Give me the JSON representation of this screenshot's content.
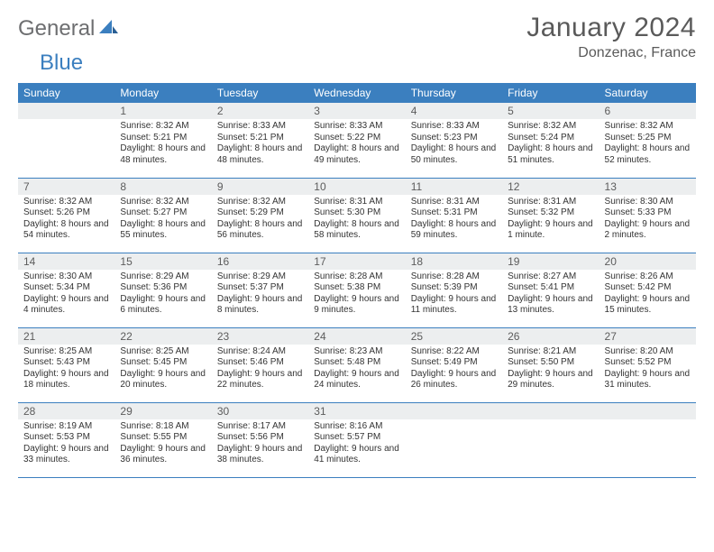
{
  "logo": {
    "word1": "General",
    "word2": "Blue"
  },
  "header": {
    "month_title": "January 2024",
    "location": "Donzenac, France"
  },
  "colors": {
    "header_bg": "#3b7fbf",
    "header_text": "#ffffff",
    "daynum_bg": "#eceeef",
    "daynum_text": "#5c5c5c",
    "body_text": "#333333",
    "rule": "#3b7fbf",
    "page_bg": "#ffffff",
    "logo_gray": "#6d6e70",
    "logo_blue": "#3b7fbf"
  },
  "typography": {
    "month_title_fontsize": 30,
    "location_fontsize": 16,
    "weekday_fontsize": 12,
    "daynum_fontsize": 12,
    "body_fontsize": 10
  },
  "calendar": {
    "type": "table",
    "weekdays": [
      "Sunday",
      "Monday",
      "Tuesday",
      "Wednesday",
      "Thursday",
      "Friday",
      "Saturday"
    ],
    "weeks": [
      [
        null,
        {
          "n": "1",
          "sunrise": "8:32 AM",
          "sunset": "5:21 PM",
          "daylight": "8 hours and 48 minutes."
        },
        {
          "n": "2",
          "sunrise": "8:33 AM",
          "sunset": "5:21 PM",
          "daylight": "8 hours and 48 minutes."
        },
        {
          "n": "3",
          "sunrise": "8:33 AM",
          "sunset": "5:22 PM",
          "daylight": "8 hours and 49 minutes."
        },
        {
          "n": "4",
          "sunrise": "8:33 AM",
          "sunset": "5:23 PM",
          "daylight": "8 hours and 50 minutes."
        },
        {
          "n": "5",
          "sunrise": "8:32 AM",
          "sunset": "5:24 PM",
          "daylight": "8 hours and 51 minutes."
        },
        {
          "n": "6",
          "sunrise": "8:32 AM",
          "sunset": "5:25 PM",
          "daylight": "8 hours and 52 minutes."
        }
      ],
      [
        {
          "n": "7",
          "sunrise": "8:32 AM",
          "sunset": "5:26 PM",
          "daylight": "8 hours and 54 minutes."
        },
        {
          "n": "8",
          "sunrise": "8:32 AM",
          "sunset": "5:27 PM",
          "daylight": "8 hours and 55 minutes."
        },
        {
          "n": "9",
          "sunrise": "8:32 AM",
          "sunset": "5:29 PM",
          "daylight": "8 hours and 56 minutes."
        },
        {
          "n": "10",
          "sunrise": "8:31 AM",
          "sunset": "5:30 PM",
          "daylight": "8 hours and 58 minutes."
        },
        {
          "n": "11",
          "sunrise": "8:31 AM",
          "sunset": "5:31 PM",
          "daylight": "8 hours and 59 minutes."
        },
        {
          "n": "12",
          "sunrise": "8:31 AM",
          "sunset": "5:32 PM",
          "daylight": "9 hours and 1 minute."
        },
        {
          "n": "13",
          "sunrise": "8:30 AM",
          "sunset": "5:33 PM",
          "daylight": "9 hours and 2 minutes."
        }
      ],
      [
        {
          "n": "14",
          "sunrise": "8:30 AM",
          "sunset": "5:34 PM",
          "daylight": "9 hours and 4 minutes."
        },
        {
          "n": "15",
          "sunrise": "8:29 AM",
          "sunset": "5:36 PM",
          "daylight": "9 hours and 6 minutes."
        },
        {
          "n": "16",
          "sunrise": "8:29 AM",
          "sunset": "5:37 PM",
          "daylight": "9 hours and 8 minutes."
        },
        {
          "n": "17",
          "sunrise": "8:28 AM",
          "sunset": "5:38 PM",
          "daylight": "9 hours and 9 minutes."
        },
        {
          "n": "18",
          "sunrise": "8:28 AM",
          "sunset": "5:39 PM",
          "daylight": "9 hours and 11 minutes."
        },
        {
          "n": "19",
          "sunrise": "8:27 AM",
          "sunset": "5:41 PM",
          "daylight": "9 hours and 13 minutes."
        },
        {
          "n": "20",
          "sunrise": "8:26 AM",
          "sunset": "5:42 PM",
          "daylight": "9 hours and 15 minutes."
        }
      ],
      [
        {
          "n": "21",
          "sunrise": "8:25 AM",
          "sunset": "5:43 PM",
          "daylight": "9 hours and 18 minutes."
        },
        {
          "n": "22",
          "sunrise": "8:25 AM",
          "sunset": "5:45 PM",
          "daylight": "9 hours and 20 minutes."
        },
        {
          "n": "23",
          "sunrise": "8:24 AM",
          "sunset": "5:46 PM",
          "daylight": "9 hours and 22 minutes."
        },
        {
          "n": "24",
          "sunrise": "8:23 AM",
          "sunset": "5:48 PM",
          "daylight": "9 hours and 24 minutes."
        },
        {
          "n": "25",
          "sunrise": "8:22 AM",
          "sunset": "5:49 PM",
          "daylight": "9 hours and 26 minutes."
        },
        {
          "n": "26",
          "sunrise": "8:21 AM",
          "sunset": "5:50 PM",
          "daylight": "9 hours and 29 minutes."
        },
        {
          "n": "27",
          "sunrise": "8:20 AM",
          "sunset": "5:52 PM",
          "daylight": "9 hours and 31 minutes."
        }
      ],
      [
        {
          "n": "28",
          "sunrise": "8:19 AM",
          "sunset": "5:53 PM",
          "daylight": "9 hours and 33 minutes."
        },
        {
          "n": "29",
          "sunrise": "8:18 AM",
          "sunset": "5:55 PM",
          "daylight": "9 hours and 36 minutes."
        },
        {
          "n": "30",
          "sunrise": "8:17 AM",
          "sunset": "5:56 PM",
          "daylight": "9 hours and 38 minutes."
        },
        {
          "n": "31",
          "sunrise": "8:16 AM",
          "sunset": "5:57 PM",
          "daylight": "9 hours and 41 minutes."
        },
        null,
        null,
        null
      ]
    ]
  }
}
